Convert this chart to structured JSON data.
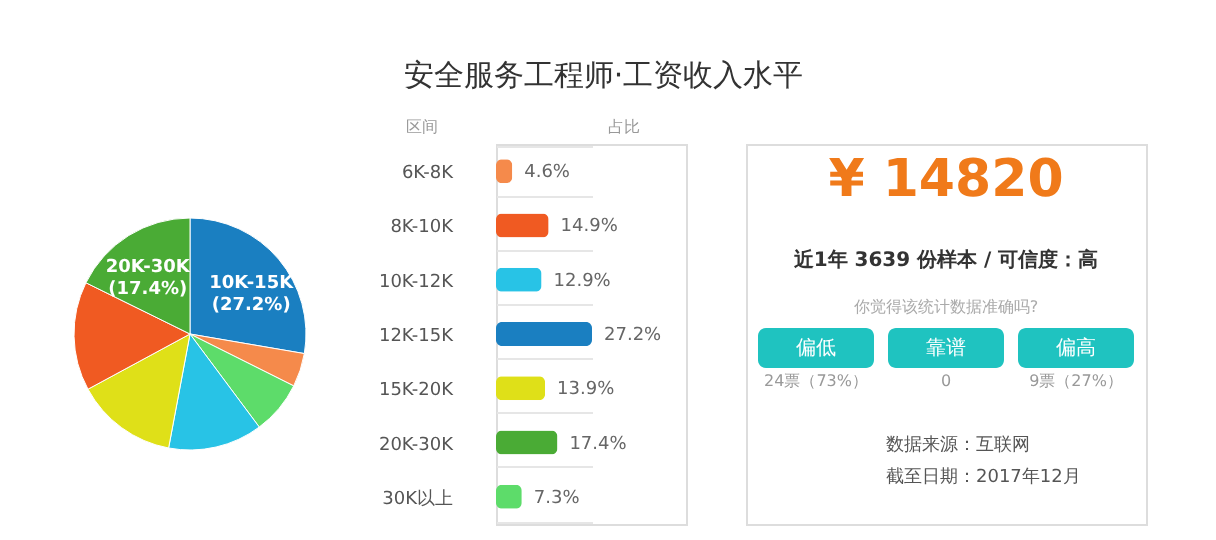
{
  "chart_data": [
    {
      "type": "pie",
      "title": "安全服务工程师·工资收入水平",
      "categories": [
        "10K-15K",
        null,
        null,
        null,
        null,
        null,
        "20K-30K"
      ],
      "values": [
        27.2,
        4.6,
        7.3,
        12.9,
        13.9,
        14.9,
        17.4
      ],
      "value_labels": [
        "(27.2%)",
        null,
        null,
        null,
        null,
        null,
        "(17.4%)"
      ],
      "colors": [
        "#1a7fc1",
        "#f58a4b",
        "#5ddc6a",
        "#28c3e6",
        "#dfe018",
        "#f05a22",
        "#4aab35"
      ]
    },
    {
      "type": "bar",
      "orientation": "horizontal",
      "ylabel": "区间",
      "xlabel": "占比",
      "grid": "y",
      "categories": [
        "6K-8K",
        "8K-10K",
        "10K-12K",
        "12K-15K",
        "15K-20K",
        "20K-30K",
        "30K以上"
      ],
      "values": [
        4.6,
        14.9,
        12.9,
        27.2,
        13.9,
        17.4,
        7.3
      ],
      "value_labels": [
        "4.6%",
        "14.9%",
        "12.9%",
        "27.2%",
        "13.9%",
        "17.4%",
        "7.3%"
      ],
      "colors": [
        "#f58a4b",
        "#f05a22",
        "#28c3e6",
        "#1a7fc1",
        "#dfe018",
        "#4aab35",
        "#5ddc6a"
      ]
    },
    {
      "type": "other",
      "annotations": [
        "¥ 14820",
        "近1年 3639 份样本 / 可信度：高",
        "你觉得该统计数据准确吗?",
        "偏低",
        "靠谱",
        "偏高",
        "24票（73%）",
        "0",
        "9票（27%）",
        "数据来源：互联网",
        "截至日期：2017年12月"
      ]
    }
  ]
}
